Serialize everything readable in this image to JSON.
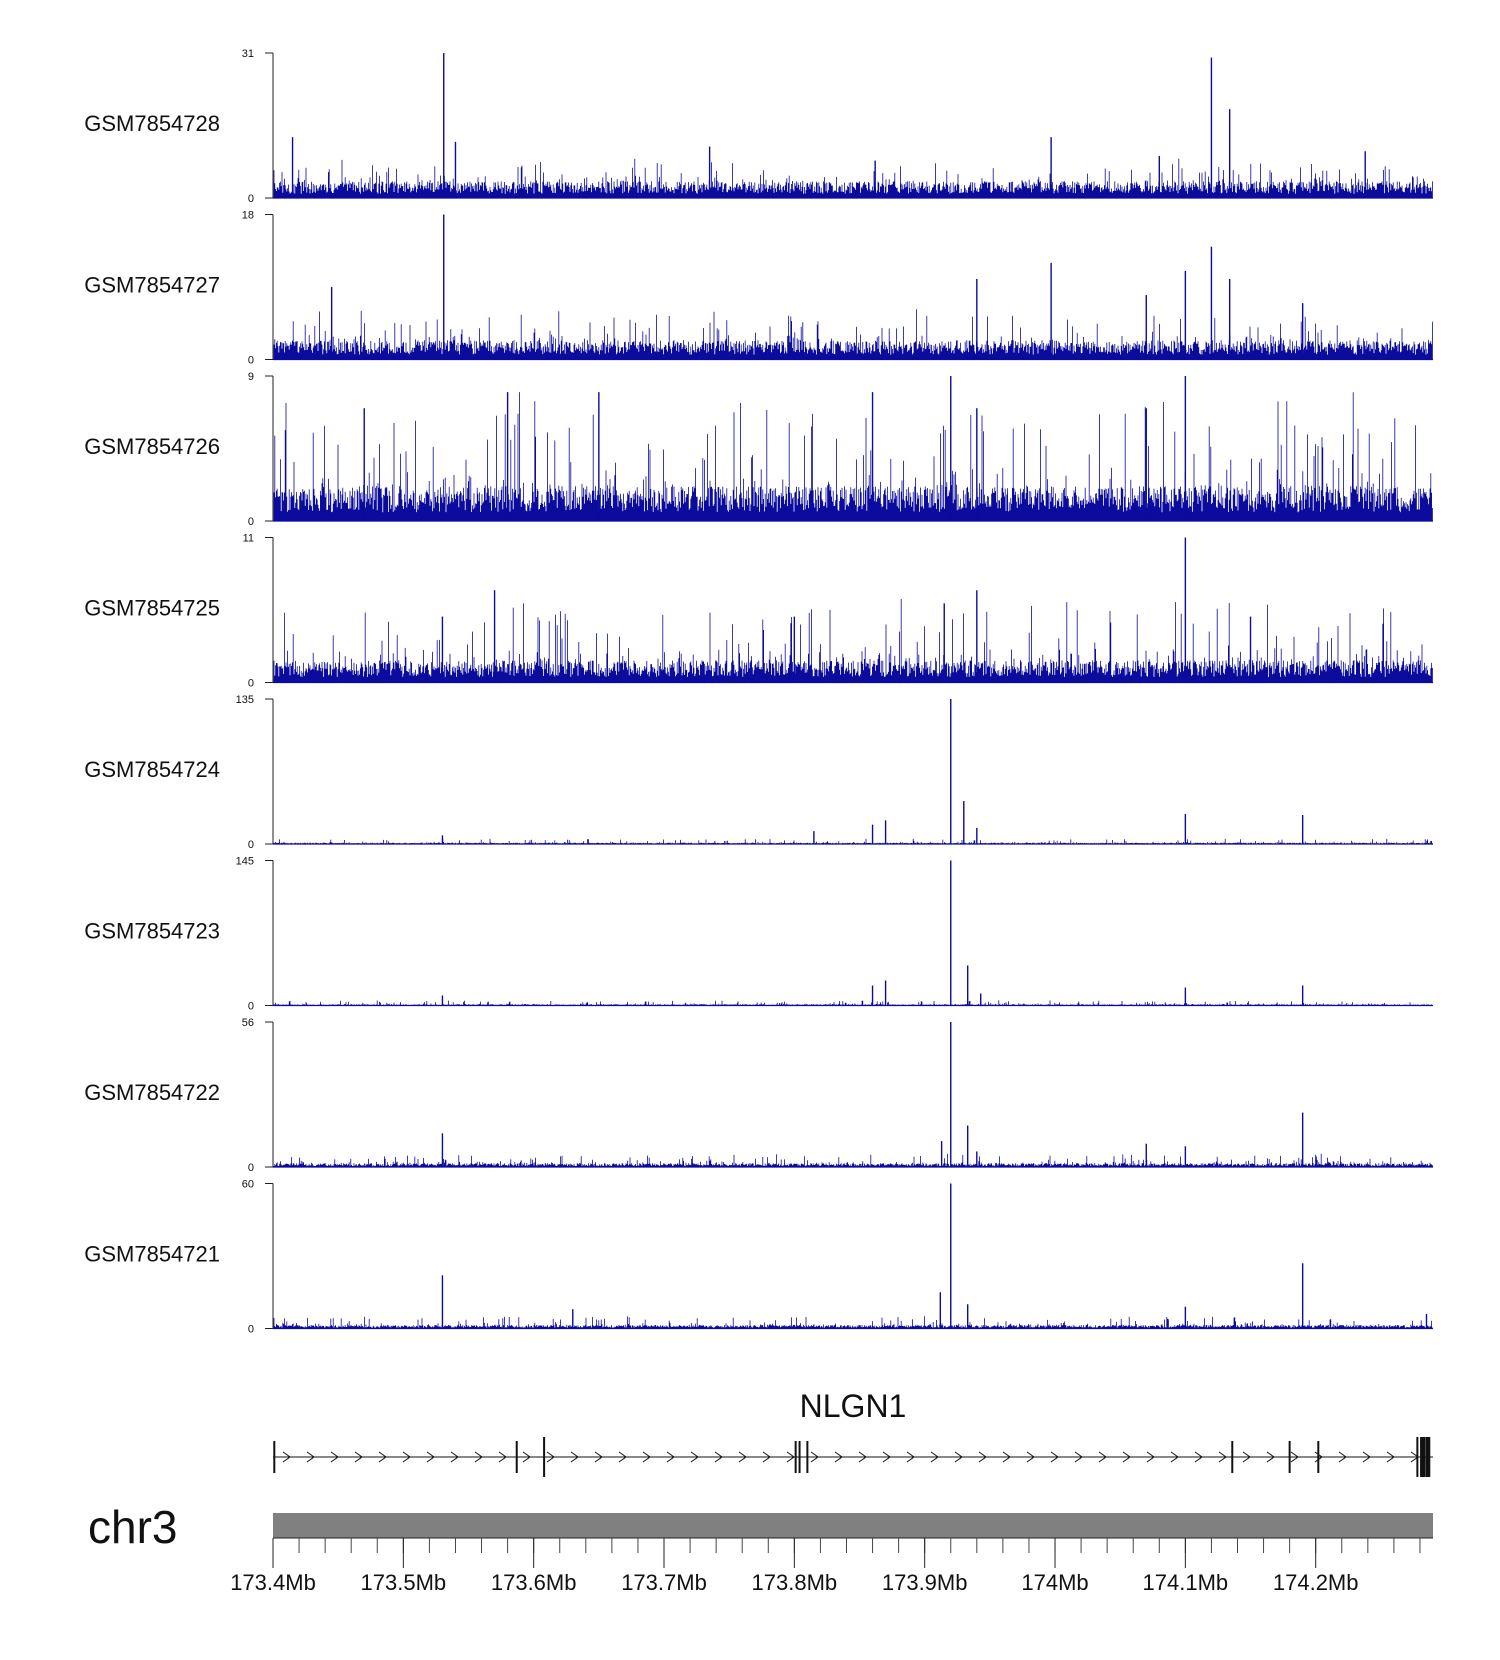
{
  "chart_data": {
    "type": "bar",
    "genome_view": true,
    "x_range": [
      173.4,
      174.29
    ],
    "x_unit": "Mb",
    "signal_color": "#0b0b9e",
    "tracks": [
      {
        "name": "GSM7854728",
        "ylim": [
          0,
          31
        ],
        "baseline": 3,
        "noise": 2.5,
        "peaks": [
          [
            173.415,
            13
          ],
          [
            173.531,
            31
          ],
          [
            173.54,
            12
          ],
          [
            173.735,
            11
          ],
          [
            173.862,
            8
          ],
          [
            173.997,
            13
          ],
          [
            174.12,
            30
          ],
          [
            174.134,
            19
          ],
          [
            174.238,
            10
          ],
          [
            174.08,
            9
          ]
        ]
      },
      {
        "name": "GSM7854727",
        "ylim": [
          0,
          18
        ],
        "baseline": 2,
        "noise": 2,
        "peaks": [
          [
            173.531,
            18
          ],
          [
            173.445,
            9
          ],
          [
            173.94,
            10
          ],
          [
            173.997,
            12
          ],
          [
            174.1,
            11
          ],
          [
            174.12,
            14
          ],
          [
            174.134,
            10
          ],
          [
            174.07,
            8
          ],
          [
            174.19,
            7
          ]
        ]
      },
      {
        "name": "GSM7854726",
        "ylim": [
          0,
          9
        ],
        "baseline": 1.8,
        "noise": 3,
        "peaks": [
          [
            173.92,
            9
          ],
          [
            174.1,
            9
          ],
          [
            173.86,
            8
          ],
          [
            173.65,
            8
          ],
          [
            173.58,
            8
          ],
          [
            174.07,
            7
          ],
          [
            173.94,
            7
          ],
          [
            173.47,
            7
          ]
        ]
      },
      {
        "name": "GSM7854725",
        "ylim": [
          0,
          11
        ],
        "baseline": 1.4,
        "noise": 2.5,
        "peaks": [
          [
            174.1,
            11
          ],
          [
            173.94,
            7
          ],
          [
            173.915,
            6
          ],
          [
            173.57,
            7
          ],
          [
            173.53,
            5
          ],
          [
            173.8,
            5
          ],
          [
            174.15,
            5
          ]
        ]
      },
      {
        "name": "GSM7854724",
        "ylim": [
          0,
          135
        ],
        "baseline": 1,
        "noise": 2,
        "peaks": [
          [
            173.92,
            135
          ],
          [
            173.93,
            40
          ],
          [
            173.86,
            18
          ],
          [
            173.87,
            22
          ],
          [
            173.94,
            15
          ],
          [
            174.1,
            28
          ],
          [
            174.19,
            27
          ],
          [
            173.815,
            12
          ],
          [
            173.53,
            8
          ]
        ]
      },
      {
        "name": "GSM7854723",
        "ylim": [
          0,
          145
        ],
        "baseline": 1,
        "noise": 2,
        "peaks": [
          [
            173.92,
            145
          ],
          [
            173.933,
            40
          ],
          [
            173.86,
            20
          ],
          [
            173.87,
            25
          ],
          [
            173.943,
            12
          ],
          [
            174.1,
            18
          ],
          [
            174.19,
            20
          ],
          [
            173.53,
            10
          ]
        ]
      },
      {
        "name": "GSM7854722",
        "ylim": [
          0,
          56
        ],
        "baseline": 1.2,
        "noise": 2,
        "peaks": [
          [
            173.92,
            56
          ],
          [
            173.913,
            10
          ],
          [
            173.933,
            16
          ],
          [
            173.53,
            13
          ],
          [
            174.19,
            21
          ],
          [
            174.1,
            8
          ],
          [
            174.07,
            9
          ],
          [
            173.94,
            6
          ]
        ]
      },
      {
        "name": "GSM7854721",
        "ylim": [
          0,
          60
        ],
        "baseline": 1.2,
        "noise": 2,
        "peaks": [
          [
            173.92,
            60
          ],
          [
            173.912,
            15
          ],
          [
            173.933,
            10
          ],
          [
            173.53,
            22
          ],
          [
            173.63,
            8
          ],
          [
            174.19,
            27
          ],
          [
            174.1,
            9
          ],
          [
            174.285,
            6
          ]
        ]
      }
    ],
    "gene": {
      "name": "NLGN1",
      "strand": "+",
      "start": 173.4,
      "end": 174.29,
      "exons": [
        173.401,
        173.587,
        173.608,
        173.801,
        173.804,
        173.81,
        174.136,
        174.18,
        174.202,
        174.278,
        174.282,
        174.286
      ]
    },
    "chromosome": "chr3",
    "x_ticks": [
      {
        "value": 173.4,
        "label": "173.4Mb"
      },
      {
        "value": 173.5,
        "label": "173.5Mb"
      },
      {
        "value": 173.6,
        "label": "173.6Mb"
      },
      {
        "value": 173.7,
        "label": "173.7Mb"
      },
      {
        "value": 173.8,
        "label": "173.8Mb"
      },
      {
        "value": 173.9,
        "label": "173.9Mb"
      },
      {
        "value": 174.0,
        "label": "174Mb"
      },
      {
        "value": 174.1,
        "label": "174.1Mb"
      },
      {
        "value": 174.2,
        "label": "174.2Mb"
      }
    ],
    "minor_tick_step": 0.02
  }
}
